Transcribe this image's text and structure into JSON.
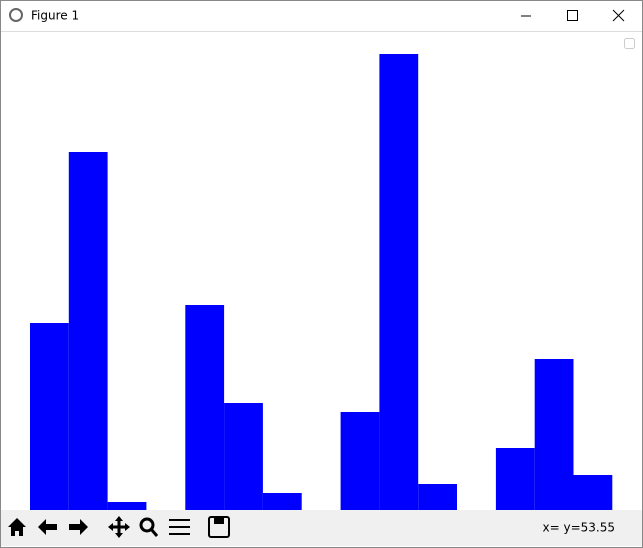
{
  "window": {
    "title": "Figure 1",
    "status": "x= y=53.55"
  },
  "chart_data": {
    "type": "bar",
    "categories": [
      null,
      null,
      null,
      null
    ],
    "series": [
      {
        "color": "#0000ff",
        "values": [
          187,
          205,
          98,
          62
        ]
      },
      {
        "color": "#0000ff",
        "values": [
          358,
          107,
          456,
          151
        ]
      },
      {
        "color": "#0000ff",
        "values": [
          8,
          17,
          26,
          35
        ]
      }
    ],
    "ylim": [
      0,
      478
    ]
  }
}
